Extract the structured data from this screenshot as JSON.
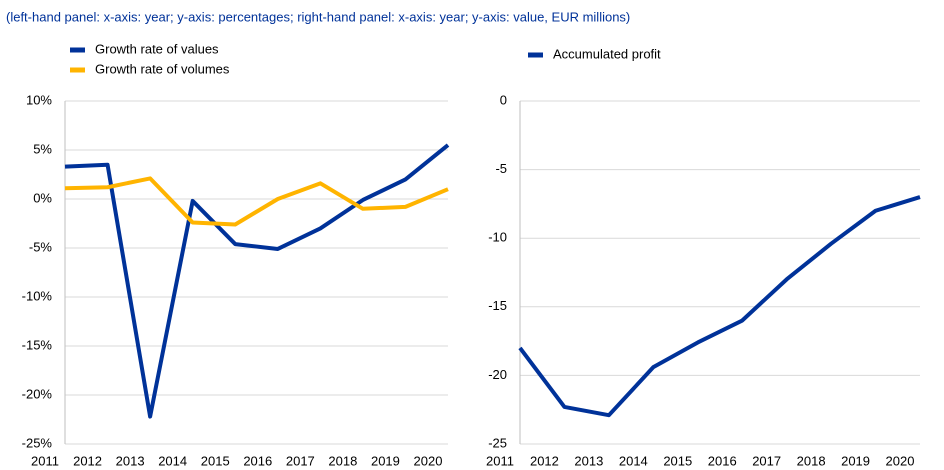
{
  "caption": "(left-hand panel: x-axis: year; y-axis: percentages; right-hand panel: x-axis: year; y-axis: value, EUR millions)",
  "chart_data": [
    {
      "type": "line",
      "x": [
        2011,
        2012,
        2013,
        2014,
        2015,
        2016,
        2017,
        2018,
        2019,
        2020
      ],
      "xlim": [
        2011,
        2020
      ],
      "xticks": [
        2011,
        2012,
        2013,
        2014,
        2015,
        2016,
        2017,
        2018,
        2019,
        2020
      ],
      "ylim": [
        -25,
        10
      ],
      "yticks": [
        {
          "value": -25,
          "label": "-25%"
        },
        {
          "value": -20,
          "label": "-20%"
        },
        {
          "value": -15,
          "label": "-15%"
        },
        {
          "value": -10,
          "label": "-10%"
        },
        {
          "value": -5,
          "label": "-5%"
        },
        {
          "value": 0,
          "label": "0%"
        },
        {
          "value": 5,
          "label": "5%"
        },
        {
          "value": 10,
          "label": "10%"
        }
      ],
      "grid": true,
      "series": [
        {
          "name": "Growth rate of values",
          "color": "#003299",
          "values": [
            3.3,
            3.5,
            -22.2,
            -0.2,
            -4.6,
            -5.1,
            -3.0,
            -0.1,
            2.0,
            5.5
          ]
        },
        {
          "name": "Growth rate of volumes",
          "color": "#ffb400",
          "values": [
            1.1,
            1.2,
            2.1,
            -2.4,
            -2.6,
            0,
            1.6,
            -1.0,
            -0.8,
            1.0
          ]
        }
      ]
    },
    {
      "type": "line",
      "x": [
        2011,
        2012,
        2013,
        2014,
        2015,
        2016,
        2017,
        2018,
        2019,
        2020
      ],
      "xlim": [
        2011,
        2020
      ],
      "xticks": [
        2011,
        2012,
        2013,
        2014,
        2015,
        2016,
        2017,
        2018,
        2019,
        2020
      ],
      "ylim": [
        -25,
        0
      ],
      "yticks": [
        -25,
        -20,
        -15,
        -10,
        -5,
        0
      ],
      "grid": true,
      "series": [
        {
          "name": "Accumulated profit",
          "color": "#003299",
          "values": [
            -18.0,
            -22.3,
            -22.9,
            -19.4,
            -17.6,
            -16.0,
            -13.0,
            -10.4,
            -8.0,
            -7.0
          ]
        }
      ]
    }
  ]
}
